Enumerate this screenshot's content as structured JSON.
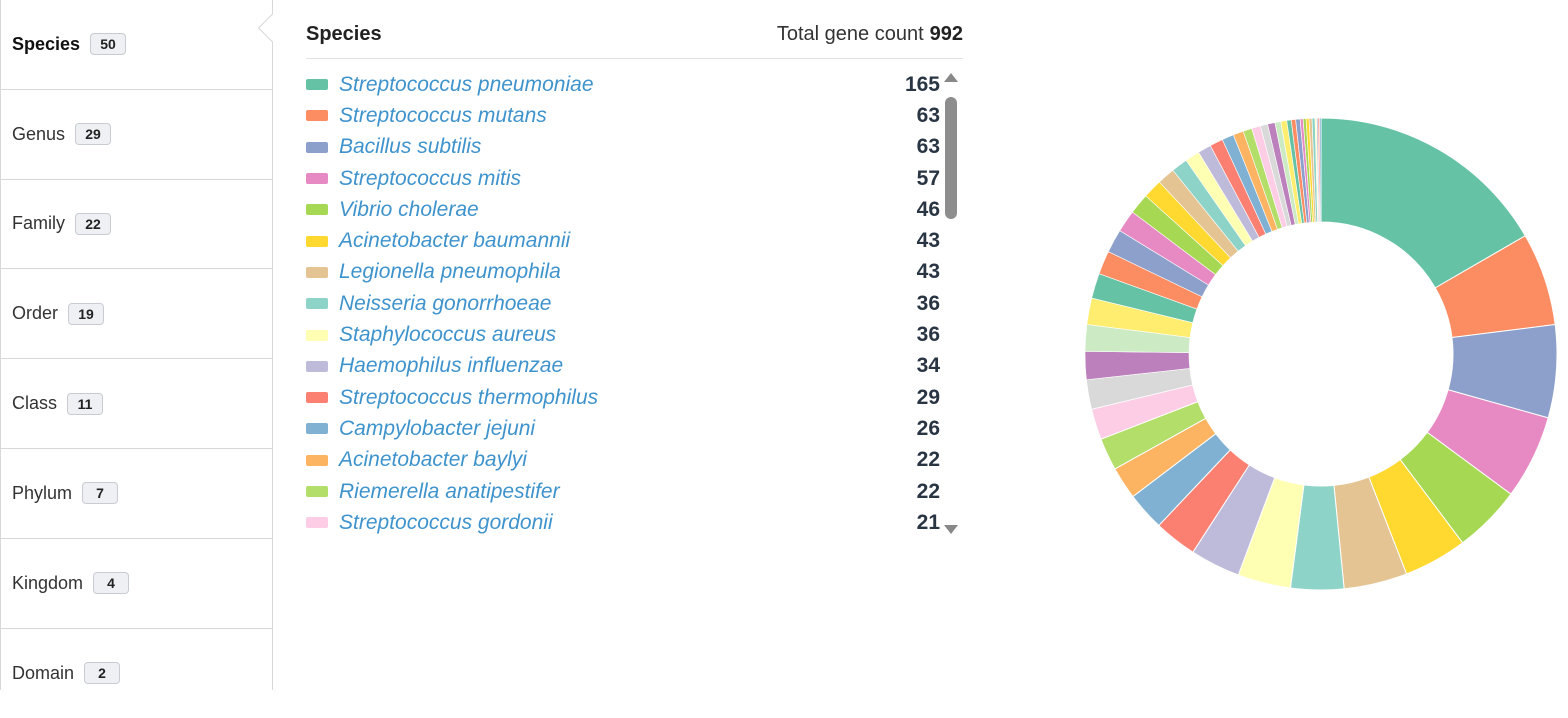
{
  "sidebar": {
    "tabs": [
      {
        "label": "Species",
        "count": "50",
        "active": true
      },
      {
        "label": "Genus",
        "count": "29"
      },
      {
        "label": "Family",
        "count": "22"
      },
      {
        "label": "Order",
        "count": "19"
      },
      {
        "label": "Class",
        "count": "11"
      },
      {
        "label": "Phylum",
        "count": "7"
      },
      {
        "label": "Kingdom",
        "count": "4"
      },
      {
        "label": "Domain",
        "count": "2"
      }
    ]
  },
  "panel": {
    "title": "Species",
    "total_label": "Total gene count",
    "total_value": "992"
  },
  "legend": [
    {
      "name": "Streptococcus pneumoniae",
      "count": "165",
      "color": "#66c2a5"
    },
    {
      "name": "Streptococcus mutans",
      "count": "63",
      "color": "#fc8d62"
    },
    {
      "name": "Bacillus subtilis",
      "count": "63",
      "color": "#8da0cb"
    },
    {
      "name": "Streptococcus mitis",
      "count": "57",
      "color": "#e78ac3"
    },
    {
      "name": "Vibrio cholerae",
      "count": "46",
      "color": "#a6d854"
    },
    {
      "name": "Acinetobacter baumannii",
      "count": "43",
      "color": "#ffd92f"
    },
    {
      "name": "Legionella pneumophila",
      "count": "43",
      "color": "#e5c494"
    },
    {
      "name": "Neisseria gonorrhoeae",
      "count": "36",
      "color": "#8dd3c7"
    },
    {
      "name": "Staphylococcus aureus",
      "count": "36",
      "color": "#ffffb3"
    },
    {
      "name": "Haemophilus influenzae",
      "count": "34",
      "color": "#bebada"
    },
    {
      "name": "Streptococcus thermophilus",
      "count": "29",
      "color": "#fb8072"
    },
    {
      "name": "Campylobacter jejuni",
      "count": "26",
      "color": "#80b1d3"
    },
    {
      "name": "Acinetobacter baylyi",
      "count": "22",
      "color": "#fdb462"
    },
    {
      "name": "Riemerella anatipestifer",
      "count": "22",
      "color": "#b3de69"
    },
    {
      "name": "Streptococcus gordonii",
      "count": "21",
      "color": "#fccde5"
    }
  ],
  "chart_data": {
    "type": "pie",
    "donut": true,
    "total": 992,
    "categories": [
      "Streptococcus pneumoniae",
      "Streptococcus mutans",
      "Bacillus subtilis",
      "Streptococcus mitis",
      "Vibrio cholerae",
      "Acinetobacter baumannii",
      "Legionella pneumophila",
      "Neisseria gonorrhoeae",
      "Staphylococcus aureus",
      "Haemophilus influenzae",
      "Streptococcus thermophilus",
      "Campylobacter jejuni",
      "Acinetobacter baylyi",
      "Riemerella anatipestifer",
      "Streptococcus gordonii"
    ],
    "values": [
      165,
      63,
      63,
      57,
      46,
      43,
      43,
      36,
      36,
      34,
      29,
      26,
      22,
      22,
      21
    ],
    "other_values": [
      20,
      19,
      18,
      18,
      17,
      16,
      16,
      15,
      14,
      13,
      12,
      11,
      10,
      9,
      9,
      8,
      7,
      6,
      6,
      5,
      5,
      4,
      4,
      3,
      3,
      3,
      2,
      2,
      2,
      2,
      2,
      1,
      1,
      1,
      1
    ],
    "palette": [
      "#66c2a5",
      "#fc8d62",
      "#8da0cb",
      "#e78ac3",
      "#a6d854",
      "#ffd92f",
      "#e5c494",
      "#8dd3c7",
      "#ffffb3",
      "#bebada",
      "#fb8072",
      "#80b1d3",
      "#fdb462",
      "#b3de69",
      "#fccde5",
      "#d9d9d9",
      "#bc80bd",
      "#ccebc5",
      "#ffed6f"
    ]
  }
}
